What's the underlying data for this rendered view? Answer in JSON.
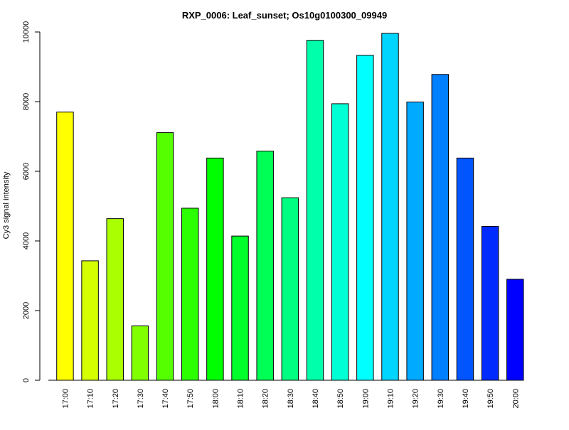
{
  "chart_data": {
    "type": "bar",
    "title": "RXP_0006: Leaf_sunset; Os10g0100300_09949",
    "xlabel": "",
    "ylabel": "Cy3 signal intensity",
    "ylim": [
      0,
      10000
    ],
    "yticks": [
      0,
      2000,
      4000,
      6000,
      8000,
      10000
    ],
    "grid": false,
    "categories": [
      "17:00",
      "17:10",
      "17:20",
      "17:30",
      "17:40",
      "17:50",
      "18:00",
      "18:10",
      "18:20",
      "18:30",
      "18:40",
      "18:50",
      "19:00",
      "19:10",
      "19:20",
      "19:30",
      "19:40",
      "19:50",
      "20:00"
    ],
    "values": [
      7700,
      3430,
      4640,
      1560,
      7110,
      4940,
      6380,
      4140,
      6580,
      5240,
      9760,
      7940,
      9330,
      9960,
      7990,
      8780,
      6380,
      4420,
      2900
    ],
    "colors": [
      "#FFFF00",
      "#D5FF00",
      "#AAFF00",
      "#80FF00",
      "#55FF00",
      "#2BFF00",
      "#00FF00",
      "#00FF2B",
      "#00FF55",
      "#00FF80",
      "#00FFAA",
      "#00FFD5",
      "#00FFFF",
      "#00D5FF",
      "#00AAFF",
      "#0080FF",
      "#0055FF",
      "#002BFF",
      "#0000FF"
    ]
  }
}
